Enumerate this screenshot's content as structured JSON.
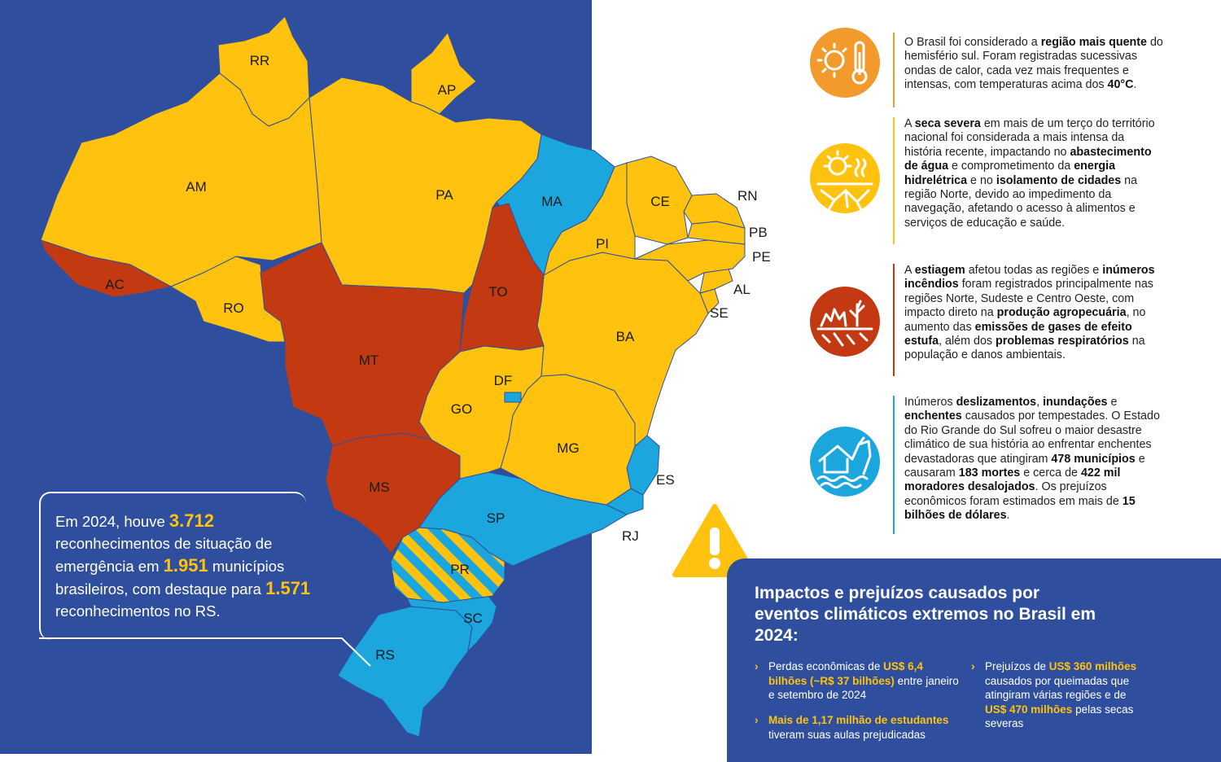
{
  "map": {
    "states": {
      "RR": "RR",
      "AP": "AP",
      "AM": "AM",
      "PA": "PA",
      "MA": "MA",
      "CE": "CE",
      "RN": "RN",
      "PB": "PB",
      "PE": "PE",
      "AL": "AL",
      "SE": "SE",
      "PI": "PI",
      "AC": "AC",
      "RO": "RO",
      "TO": "TO",
      "MT": "MT",
      "BA": "BA",
      "DF": "DF",
      "GO": "GO",
      "MG": "MG",
      "ES": "ES",
      "MS": "MS",
      "SP": "SP",
      "RJ": "RJ",
      "PR": "PR",
      "SC": "SC",
      "RS": "RS"
    },
    "colors": {
      "background": "#2f4f9e",
      "yellow": "#ffc20e",
      "red": "#c33a12",
      "blue": "#1ba6dd"
    }
  },
  "callout": {
    "part1": "Em 2024, houve ",
    "num1": "3.712",
    "part2": " reconhecimentos de situação de emergência em ",
    "num2": "1.951",
    "part3": " municípios brasileiros, com destaque para ",
    "num3": "1.571",
    "part4": " reconhecimentos no RS."
  },
  "impacts": [
    {
      "icon": "heat-thermometer-icon",
      "color": "#f39a2c",
      "segments": [
        {
          "t": "O Brasil foi considerado a ",
          "b": false
        },
        {
          "t": "região mais quente",
          "b": true
        },
        {
          "t": " do hemisfério sul. Foram registradas sucessivas ondas de calor, cada vez mais frequentes e intensas, com temperaturas acima dos ",
          "b": false
        },
        {
          "t": "40°C",
          "b": true
        },
        {
          "t": ".",
          "b": false
        }
      ]
    },
    {
      "icon": "drought-sun-icon",
      "color": "#ffc20e",
      "segments": [
        {
          "t": "A ",
          "b": false
        },
        {
          "t": "seca severa",
          "b": true
        },
        {
          "t": " em mais de um terço do território nacional foi considerada a mais intensa da história recente, impactando no ",
          "b": false
        },
        {
          "t": "abastecimento de água",
          "b": true
        },
        {
          "t": " e comprometimento da ",
          "b": false
        },
        {
          "t": "energia hidrelétrica",
          "b": true
        },
        {
          "t": " e no ",
          "b": false
        },
        {
          "t": "isolamento de cidades",
          "b": true
        },
        {
          "t": " na região Norte, devido ao impedimento da navegação, afetando o acesso à alimentos e serviços de educação e saúde.",
          "b": false
        }
      ]
    },
    {
      "icon": "wildfire-icon",
      "color": "#c33a12",
      "segments": [
        {
          "t": "A ",
          "b": false
        },
        {
          "t": "estiagem",
          "b": true
        },
        {
          "t": " afetou todas as regiões e ",
          "b": false
        },
        {
          "t": "inúmeros incêndios",
          "b": true
        },
        {
          "t": " foram registrados principalmente nas regiões Norte, Sudeste e Centro Oeste, com impacto direto na ",
          "b": false
        },
        {
          "t": "produção agropecuária",
          "b": true
        },
        {
          "t": ", no aumento das ",
          "b": false
        },
        {
          "t": "emissões de gases de efeito estufa",
          "b": true
        },
        {
          "t": ", além dos ",
          "b": false
        },
        {
          "t": "problemas respiratórios",
          "b": true
        },
        {
          "t": " na população e danos ambientais.",
          "b": false
        }
      ]
    },
    {
      "icon": "flood-house-icon",
      "color": "#1ba6dd",
      "segments": [
        {
          "t": "Inúmeros ",
          "b": false
        },
        {
          "t": "deslizamentos",
          "b": true
        },
        {
          "t": ", ",
          "b": false
        },
        {
          "t": "inundações",
          "b": true
        },
        {
          "t": " e ",
          "b": false
        },
        {
          "t": "enchentes",
          "b": true
        },
        {
          "t": " causados por tempestades. O Estado do Rio Grande do Sul sofreu o maior desastre climático de sua história ao enfrentar enchentes devastadoras que atingiram ",
          "b": false
        },
        {
          "t": "478 municípios",
          "b": true
        },
        {
          "t": " e causaram ",
          "b": false
        },
        {
          "t": "183 mortes",
          "b": true
        },
        {
          "t": " e cerca de ",
          "b": false
        },
        {
          "t": "422 mil moradores desalojados",
          "b": true
        },
        {
          "t": ". Os prejuízos econômicos foram estimados em mais de ",
          "b": false
        },
        {
          "t": "15 bilhões de dólares",
          "b": true
        },
        {
          "t": ".",
          "b": false
        }
      ]
    }
  ],
  "summary": {
    "title": "Impactos e prejuízos causados por eventos climáticos extremos no Brasil em 2024:",
    "item1": {
      "a": "Perdas econômicas de ",
      "y": "US$ 6,4 bilhões (~R$ 37 bilhões)",
      "c": " entre janeiro e setembro de 2024"
    },
    "item2": {
      "y": "Mais de 1,17 milhão de estudantes",
      "c": " tiveram suas aulas prejudicadas"
    },
    "item3": {
      "a": "Prejuízos de ",
      "y": "US$ 360 milhões",
      "c": " causados por queimadas que atingiram várias regiões e de ",
      "y2": "US$ 470 milhões",
      "d": " pelas secas severas"
    }
  }
}
